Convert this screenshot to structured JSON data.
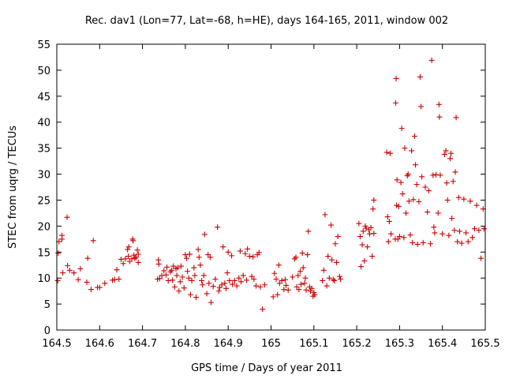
{
  "chart_data": {
    "type": "scatter",
    "title": "Rec. dav1 (Lon=77, Lat=-68, h=HE), days 164-165, 2011, window 002",
    "xlabel": "GPS time / Days of year 2011",
    "ylabel": "STEC from uqrg / TECUs",
    "xlim": [
      164.5,
      165.5
    ],
    "ylim": [
      0,
      55
    ],
    "xticks": [
      164.5,
      164.6,
      164.7,
      164.8,
      164.9,
      165,
      165.1,
      165.2,
      165.3,
      165.4,
      165.5
    ],
    "xtick_labels": [
      "164.5",
      "164.6",
      "164.7",
      "164.8",
      "164.9",
      "165",
      "165.1",
      "165.2",
      "165.3",
      "165.4",
      "165.5"
    ],
    "yticks": [
      0,
      5,
      10,
      15,
      20,
      25,
      30,
      35,
      40,
      45,
      50,
      55
    ],
    "ytick_labels": [
      "0",
      "5",
      "10",
      "15",
      "20",
      "25",
      "30",
      "35",
      "40",
      "45",
      "50",
      "55"
    ],
    "grid": false,
    "marker": "plus",
    "point_color": "#cc0000",
    "series": [
      {
        "points": [
          [
            164.502,
            9.5
          ],
          [
            164.503,
            14.8
          ],
          [
            164.505,
            17.0
          ],
          [
            164.512,
            18.2
          ],
          [
            164.512,
            17.5
          ],
          [
            164.514,
            11.0
          ],
          [
            164.524,
            21.7
          ],
          [
            164.525,
            12.4
          ],
          [
            164.53,
            11.5
          ],
          [
            164.54,
            11.0
          ],
          [
            164.55,
            9.7
          ],
          [
            164.555,
            11.8
          ],
          [
            164.57,
            9.2
          ],
          [
            164.572,
            13.8
          ],
          [
            164.58,
            7.8
          ],
          [
            164.585,
            17.2
          ],
          [
            164.595,
            8.2
          ],
          [
            164.6,
            8.2
          ],
          [
            164.612,
            9.0
          ],
          [
            164.63,
            9.6
          ],
          [
            164.635,
            9.7
          ],
          [
            164.64,
            11.6
          ],
          [
            164.645,
            9.8
          ],
          [
            164.65,
            13.6
          ],
          [
            164.655,
            12.8
          ],
          [
            164.66,
            13.7
          ],
          [
            164.665,
            15.5
          ],
          [
            164.667,
            14.2
          ],
          [
            164.668,
            16.0
          ],
          [
            164.67,
            13.2
          ],
          [
            164.675,
            13.7
          ],
          [
            164.677,
            17.5
          ],
          [
            164.678,
            17.2
          ],
          [
            164.68,
            14.4
          ],
          [
            164.682,
            13.8
          ],
          [
            164.685,
            14.0
          ],
          [
            164.688,
            15.4
          ],
          [
            164.69,
            13.0
          ],
          [
            164.69,
            14.6
          ],
          [
            164.735,
            9.8
          ],
          [
            164.737,
            13.5
          ],
          [
            164.738,
            12.7
          ],
          [
            164.74,
            9.9
          ],
          [
            164.745,
            10.5
          ],
          [
            164.75,
            11.4
          ],
          [
            164.755,
            10.6
          ],
          [
            164.757,
            12.1
          ],
          [
            164.76,
            9.5
          ],
          [
            164.765,
            11.2
          ],
          [
            164.768,
            11.5
          ],
          [
            164.77,
            9.6
          ],
          [
            164.772,
            12.3
          ],
          [
            164.775,
            8.3
          ],
          [
            164.778,
            11.8
          ],
          [
            164.78,
            10.5
          ],
          [
            164.782,
            12.0
          ],
          [
            164.785,
            7.5
          ],
          [
            164.788,
            9.3
          ],
          [
            164.79,
            12.3
          ],
          [
            164.793,
            10.2
          ],
          [
            164.797,
            8.1
          ],
          [
            164.8,
            14.5
          ],
          [
            164.803,
            13.8
          ],
          [
            164.805,
            11.3
          ],
          [
            164.808,
            10.0
          ],
          [
            164.81,
            14.6
          ],
          [
            164.812,
            6.8
          ],
          [
            164.815,
            9.5
          ],
          [
            164.82,
            12.0
          ],
          [
            164.822,
            10.5
          ],
          [
            164.825,
            6.3
          ],
          [
            164.83,
            15.5
          ],
          [
            164.832,
            14.0
          ],
          [
            164.835,
            12.5
          ],
          [
            164.838,
            9.5
          ],
          [
            164.84,
            8.7
          ],
          [
            164.843,
            10.5
          ],
          [
            164.845,
            18.4
          ],
          [
            164.85,
            7.0
          ],
          [
            164.853,
            14.5
          ],
          [
            164.855,
            9.0
          ],
          [
            164.858,
            14.0
          ],
          [
            164.86,
            5.3
          ],
          [
            164.865,
            8.4
          ],
          [
            164.87,
            9.8
          ],
          [
            164.875,
            19.8
          ],
          [
            164.878,
            7.5
          ],
          [
            164.88,
            8.2
          ],
          [
            164.885,
            8.7
          ],
          [
            164.888,
            16.0
          ],
          [
            164.892,
            9.0
          ],
          [
            164.895,
            8.0
          ],
          [
            164.898,
            11.0
          ],
          [
            164.9,
            15.0
          ],
          [
            164.903,
            9.5
          ],
          [
            164.908,
            14.3
          ],
          [
            164.91,
            8.8
          ],
          [
            164.915,
            9.5
          ],
          [
            164.92,
            8.5
          ],
          [
            164.925,
            10.0
          ],
          [
            164.928,
            15.2
          ],
          [
            164.93,
            9.3
          ],
          [
            164.935,
            10.5
          ],
          [
            164.94,
            14.7
          ],
          [
            164.943,
            9.6
          ],
          [
            164.945,
            15.6
          ],
          [
            164.95,
            14.2
          ],
          [
            164.955,
            10.3
          ],
          [
            164.958,
            14.1
          ],
          [
            164.96,
            9.8
          ],
          [
            164.965,
            8.5
          ],
          [
            164.968,
            14.5
          ],
          [
            164.972,
            14.9
          ],
          [
            164.975,
            8.3
          ],
          [
            164.98,
            4.0
          ],
          [
            164.985,
            8.7
          ],
          [
            165.005,
            6.4
          ],
          [
            165.008,
            10.9
          ],
          [
            165.012,
            9.8
          ],
          [
            165.015,
            6.8
          ],
          [
            165.018,
            12.5
          ],
          [
            165.02,
            9.0
          ],
          [
            165.025,
            9.5
          ],
          [
            165.03,
            7.8
          ],
          [
            165.033,
            9.7
          ],
          [
            165.035,
            8.6
          ],
          [
            165.04,
            7.7
          ],
          [
            165.05,
            10.2
          ],
          [
            165.055,
            13.7
          ],
          [
            165.058,
            14.0
          ],
          [
            165.06,
            8.3
          ],
          [
            165.063,
            10.5
          ],
          [
            165.065,
            7.8
          ],
          [
            165.068,
            11.3
          ],
          [
            165.07,
            8.8
          ],
          [
            165.073,
            14.8
          ],
          [
            165.075,
            12.0
          ],
          [
            165.078,
            9.0
          ],
          [
            165.08,
            10.0
          ],
          [
            165.082,
            7.7
          ],
          [
            165.085,
            14.5
          ],
          [
            165.087,
            19.0
          ],
          [
            165.09,
            8.3
          ],
          [
            165.092,
            7.5
          ],
          [
            165.095,
            8.0
          ],
          [
            165.098,
            6.5
          ],
          [
            165.1,
            7.2
          ],
          [
            165.102,
            6.8
          ],
          [
            165.12,
            9.5
          ],
          [
            165.123,
            11.5
          ],
          [
            165.126,
            22.2
          ],
          [
            165.13,
            8.5
          ],
          [
            165.133,
            14.2
          ],
          [
            165.136,
            10.0
          ],
          [
            165.14,
            20.2
          ],
          [
            165.142,
            13.5
          ],
          [
            165.145,
            9.7
          ],
          [
            165.148,
            9.5
          ],
          [
            165.15,
            16.6
          ],
          [
            165.153,
            13.0
          ],
          [
            165.156,
            18.0
          ],
          [
            165.16,
            10.3
          ],
          [
            165.162,
            9.8
          ],
          [
            165.205,
            20.5
          ],
          [
            165.208,
            18.0
          ],
          [
            165.21,
            12.2
          ],
          [
            165.213,
            16.4
          ],
          [
            165.215,
            19.0
          ],
          [
            165.218,
            13.3
          ],
          [
            165.22,
            20.0
          ],
          [
            165.222,
            19.6
          ],
          [
            165.225,
            16.0
          ],
          [
            165.228,
            19.3
          ],
          [
            165.23,
            18.5
          ],
          [
            165.233,
            19.7
          ],
          [
            165.236,
            14.2
          ],
          [
            165.238,
            23.3
          ],
          [
            165.24,
            25.0
          ],
          [
            165.24,
            18.6
          ],
          [
            165.27,
            34.2
          ],
          [
            165.272,
            21.8
          ],
          [
            165.274,
            17.0
          ],
          [
            165.276,
            20.9
          ],
          [
            165.278,
            34.0
          ],
          [
            165.28,
            18.5
          ],
          [
            165.29,
            17.5
          ],
          [
            165.291,
            43.7
          ],
          [
            165.292,
            48.4
          ],
          [
            165.293,
            24.0
          ],
          [
            165.294,
            28.9
          ],
          [
            165.296,
            17.5
          ],
          [
            165.298,
            23.8
          ],
          [
            165.3,
            18.0
          ],
          [
            165.303,
            28.4
          ],
          [
            165.305,
            38.8
          ],
          [
            165.307,
            26.2
          ],
          [
            165.31,
            17.8
          ],
          [
            165.312,
            35.0
          ],
          [
            165.315,
            22.5
          ],
          [
            165.318,
            29.7
          ],
          [
            165.32,
            30.0
          ],
          [
            165.322,
            24.8
          ],
          [
            165.325,
            18.3
          ],
          [
            165.328,
            34.5
          ],
          [
            165.33,
            16.8
          ],
          [
            165.332,
            25.1
          ],
          [
            165.335,
            37.3
          ],
          [
            165.337,
            31.8
          ],
          [
            165.34,
            28.0
          ],
          [
            165.342,
            16.5
          ],
          [
            165.345,
            24.7
          ],
          [
            165.348,
            48.7
          ],
          [
            165.35,
            43.0
          ],
          [
            165.352,
            29.5
          ],
          [
            165.355,
            16.8
          ],
          [
            165.36,
            27.5
          ],
          [
            165.365,
            22.7
          ],
          [
            165.368,
            26.8
          ],
          [
            165.372,
            16.6
          ],
          [
            165.375,
            51.9
          ],
          [
            165.378,
            29.8
          ],
          [
            165.38,
            19.8
          ],
          [
            165.382,
            18.7
          ],
          [
            165.385,
            29.9
          ],
          [
            165.39,
            22.5
          ],
          [
            165.392,
            43.4
          ],
          [
            165.393,
            41.0
          ],
          [
            165.395,
            29.8
          ],
          [
            165.4,
            18.5
          ],
          [
            165.405,
            33.8
          ],
          [
            165.408,
            34.5
          ],
          [
            165.41,
            28.3
          ],
          [
            165.412,
            25.0
          ],
          [
            165.415,
            18.2
          ],
          [
            165.418,
            33.0
          ],
          [
            165.42,
            34.0
          ],
          [
            165.422,
            21.5
          ],
          [
            165.425,
            28.6
          ],
          [
            165.428,
            19.2
          ],
          [
            165.43,
            30.4
          ],
          [
            165.432,
            40.9
          ],
          [
            165.435,
            17.0
          ],
          [
            165.438,
            25.5
          ],
          [
            165.44,
            19.0
          ],
          [
            165.445,
            16.7
          ],
          [
            165.45,
            25.2
          ],
          [
            165.455,
            18.7
          ],
          [
            165.46,
            17.0
          ],
          [
            165.465,
            24.8
          ],
          [
            165.47,
            17.8
          ],
          [
            165.475,
            19.5
          ],
          [
            165.48,
            24.0
          ],
          [
            165.485,
            19.2
          ],
          [
            165.49,
            13.8
          ],
          [
            165.495,
            23.3
          ],
          [
            165.497,
            19.5
          ]
        ]
      }
    ]
  }
}
